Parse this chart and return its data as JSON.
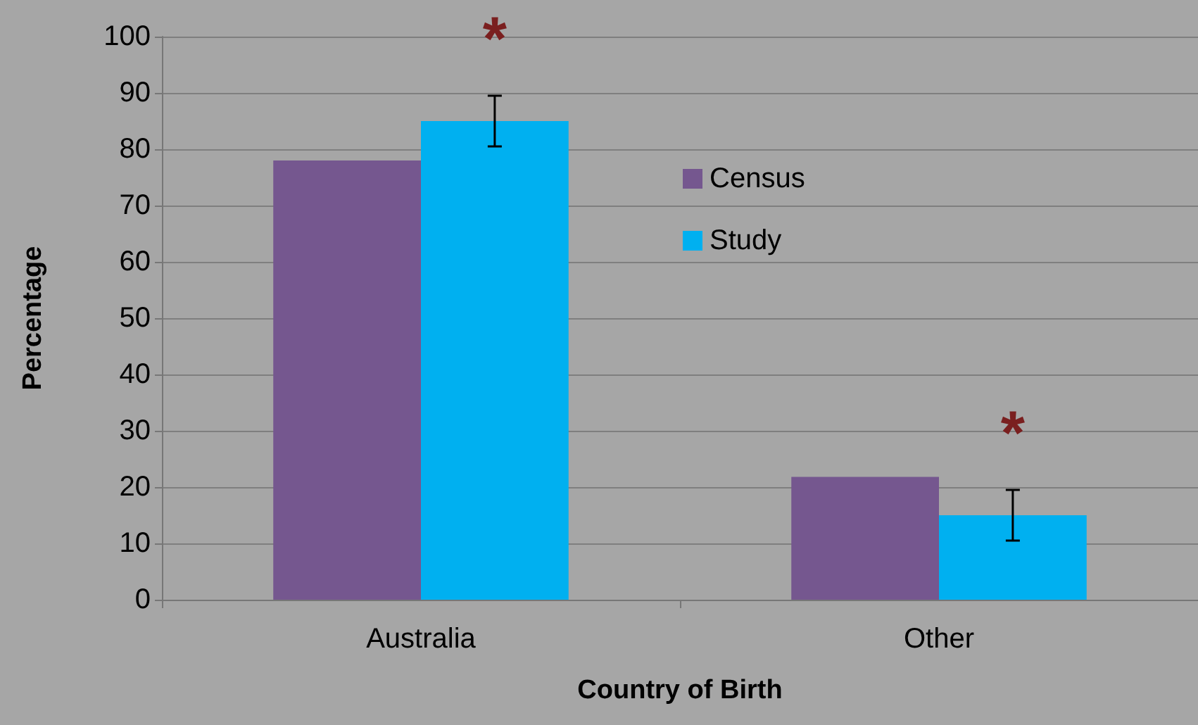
{
  "chart_data": {
    "type": "bar",
    "xlabel": "Country of Birth",
    "ylabel": "Percentage",
    "categories": [
      "Australia",
      "Other"
    ],
    "series": [
      {
        "name": "Census",
        "color": "#75578f",
        "values": [
          78,
          21.8
        ]
      },
      {
        "name": "Study",
        "color": "#00b0f0",
        "values": [
          85,
          15
        ],
        "errors": [
          4.5,
          4.5
        ]
      }
    ],
    "ylim": [
      0,
      100
    ],
    "yticks": [
      0,
      10,
      20,
      30,
      40,
      50,
      60,
      70,
      80,
      90,
      100
    ],
    "grid": "y",
    "legend": "top",
    "annotations": [
      "*",
      "*"
    ]
  }
}
